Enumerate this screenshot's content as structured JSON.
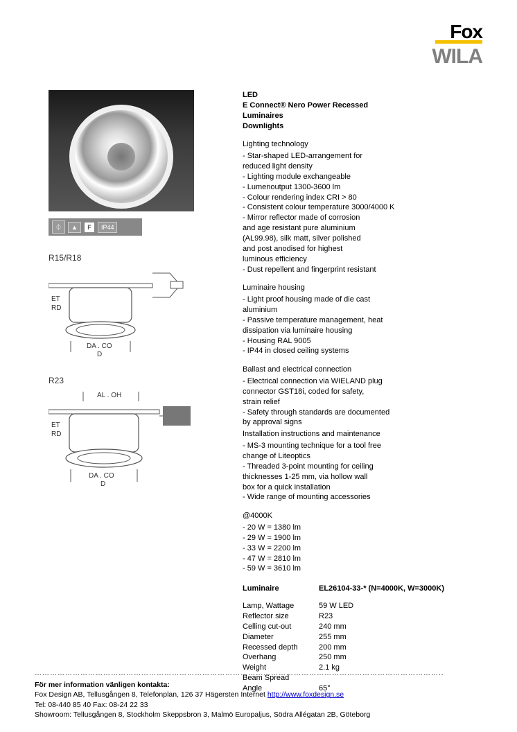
{
  "logo": {
    "fox": "Fox",
    "wila": "WILA"
  },
  "header": {
    "line1": "LED",
    "line2": "E Connect® Nero Power Recessed",
    "line3": "Luminaires",
    "line4": "Downlights"
  },
  "badges": {
    "enec": "⏀",
    "tri": "▲",
    "f": "F",
    "ip": "IP44"
  },
  "diagram1_label": "R15/R18",
  "diagram2_label": "R23",
  "sections": {
    "lighting": {
      "title": "Lighting technology",
      "items": [
        "- Star-shaped LED-arrangement for",
        "  reduced light density",
        "- Lighting module exchangeable",
        "- Lumenoutput 1300-3600 lm",
        "- Colour rendering index CRI > 80",
        "- Consistent colour temperature 3000/4000 K",
        "- Mirror reflector made of corrosion",
        "  and age resistant pure aluminium",
        "  (AL99.98), silk matt, silver polished",
        "  and post anodised for highest",
        "  luminous efficiency",
        "- Dust repellent and fingerprint resistant"
      ]
    },
    "housing": {
      "title": "Luminaire housing",
      "items": [
        "- Light proof housing made of die cast",
        "  aluminium",
        "- Passive temperature management, heat",
        "  dissipation via luminaire housing",
        "- Housing RAL 9005",
        "- IP44 in closed ceiling systems"
      ]
    },
    "ballast": {
      "title": "Ballast and electrical connection",
      "items": [
        "- Electrical connection via WIELAND plug",
        "  connector GST18i, coded for safety,",
        "  strain relief",
        "- Safety through standards are documented",
        "  by approval signs"
      ]
    },
    "install": {
      "title": "Installation instructions and maintenance",
      "items": [
        "- MS-3 mounting technique for a tool free",
        "  change of Liteoptics",
        "- Threaded 3-point mounting for ceiling",
        "  thicknesses 1-25 mm, via hollow wall",
        "  box for a quick installation",
        "- Wide range of mounting accessories"
      ]
    },
    "at4000": {
      "title": "@4000K",
      "items": [
        "- 20 W = 1380 lm",
        "- 29 W = 1900 lm",
        "- 33 W = 2200 lm",
        "- 47 W = 2810 lm",
        "- 59 W = 3610 lm"
      ]
    }
  },
  "spec_header": {
    "label": "Luminaire",
    "value": "EL26104-33-*  (N=4000K, W=3000K)"
  },
  "specs": [
    {
      "label": "Lamp, Wattage",
      "value": "59 W LED"
    },
    {
      "label": "Reflector size",
      "value": "R23"
    },
    {
      "label": "Celling cut-out",
      "value": "240 mm"
    },
    {
      "label": "Diameter",
      "value": "255 mm"
    },
    {
      "label": "Recessed depth",
      "value": "200 mm"
    },
    {
      "label": "Overhang",
      "value": "250 mm"
    },
    {
      "label": "Weight",
      "value": "2.1 kg"
    },
    {
      "label": "Beam Spread",
      "value": ""
    },
    {
      "label": "Angle",
      "value": "65°"
    }
  ],
  "footer": {
    "line1_bold": "För mer information vänligen kontakta:",
    "line2a": "Fox Design AB, Tellusgången 8, Telefonplan, 126 37 Hägersten   Internet ",
    "line2_link": "http://www.foxdesign.se",
    "line3": "Tel: 08-440 85 40 Fax: 08-24 22 33",
    "line4": "Showroom: Tellusgången 8, Stockholm    Skeppsbron 3, Malmö   Europaljus, Södra Allégatan 2B, Göteborg"
  },
  "style": {
    "page_bg": "#ffffff",
    "text_color": "#000000",
    "body_fontsize": 11,
    "accent_yellow": "#f6c200",
    "wila_gray": "#808080",
    "badge_gray": "#888888",
    "link_color": "#0000cc"
  }
}
